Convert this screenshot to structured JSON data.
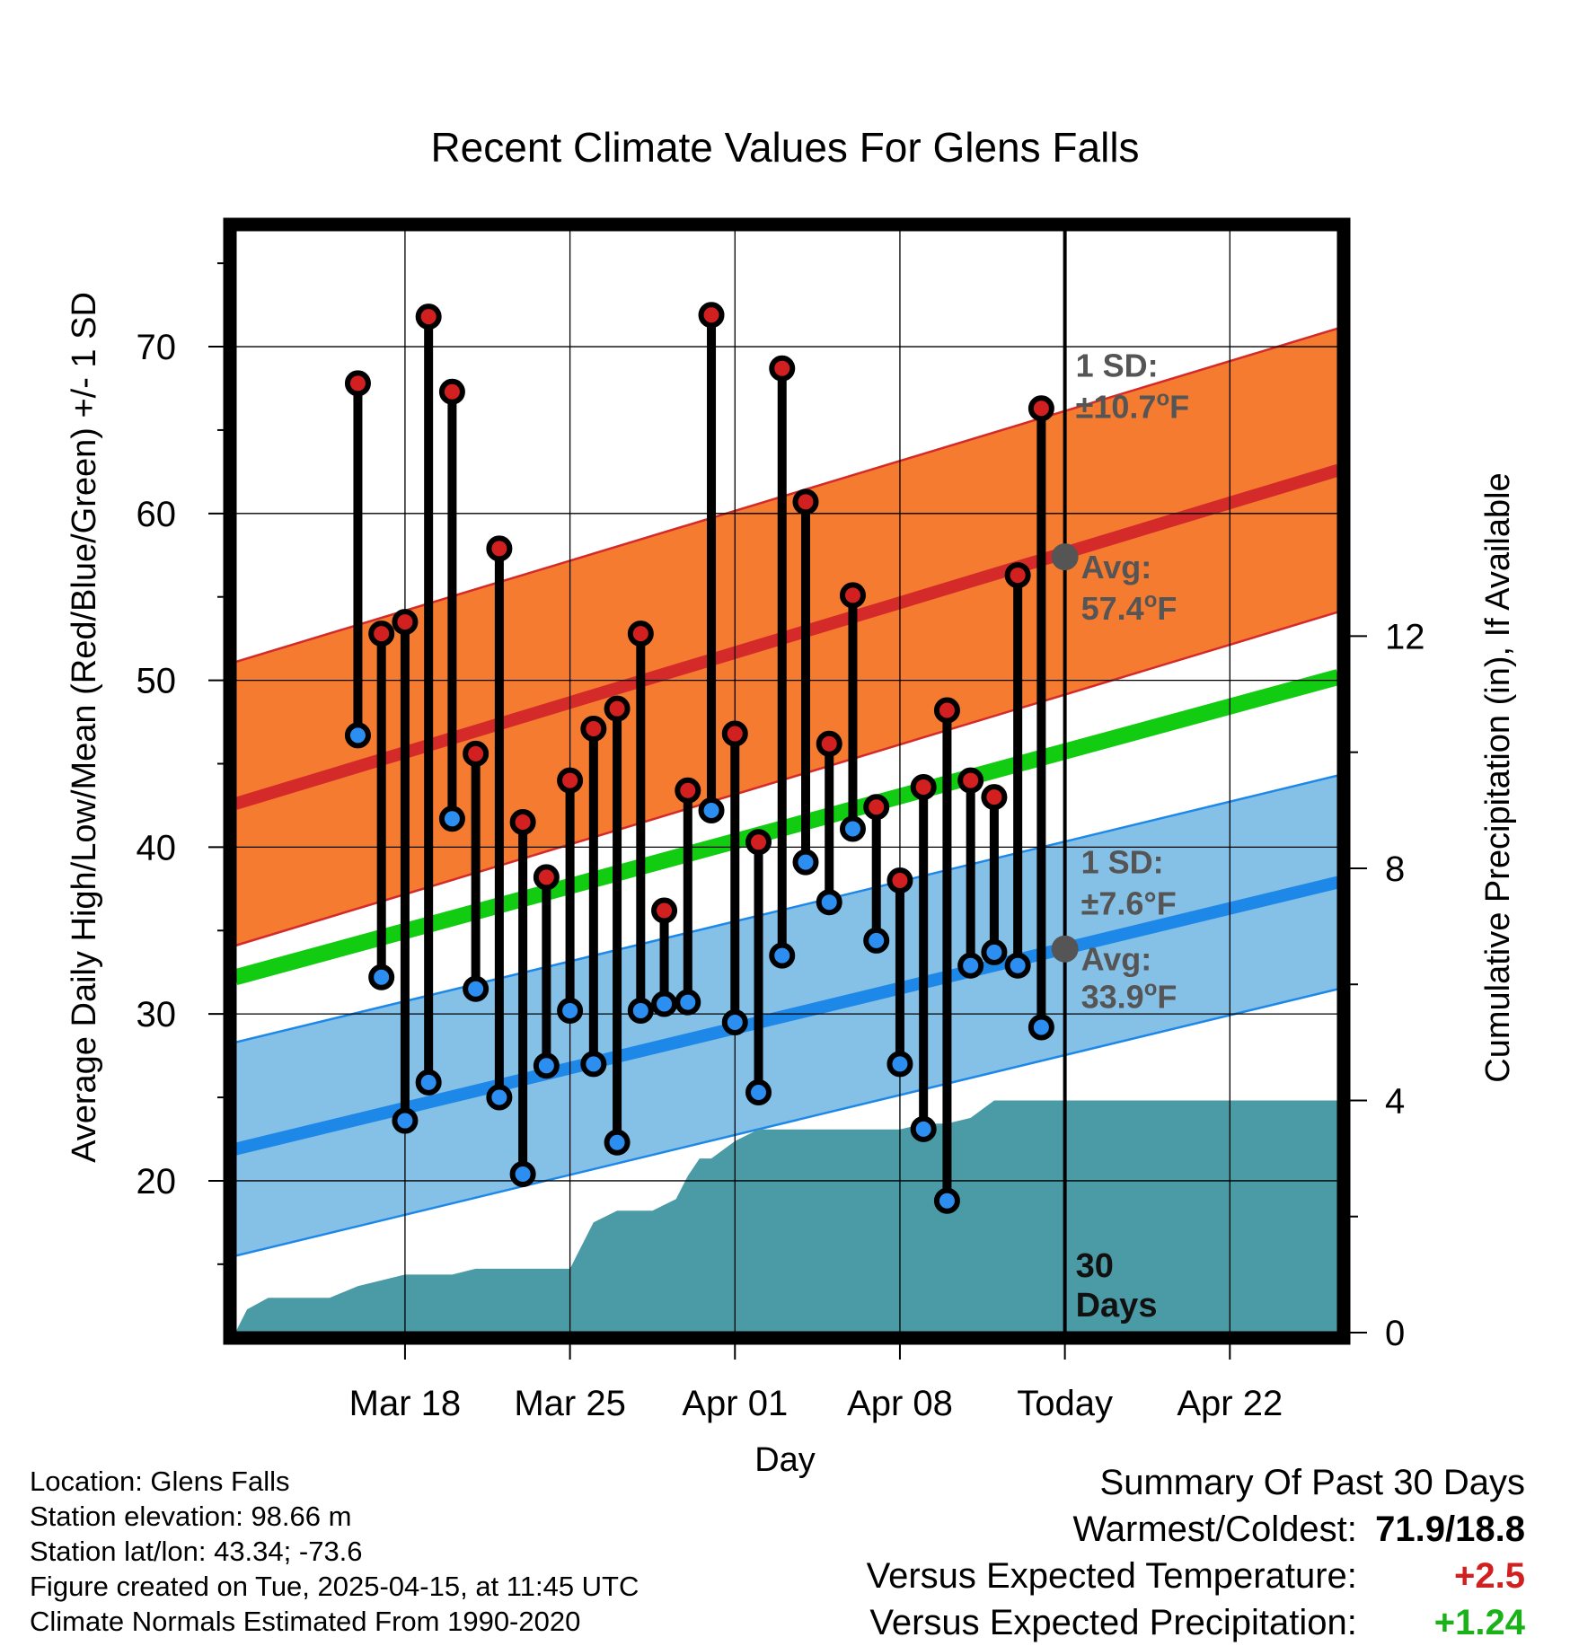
{
  "chart_data": {
    "type": "line",
    "title": "Recent Climate Values For Glens Falls",
    "xlabel": "Day",
    "ylabel_left": "Average Daily High/Low/Mean (Red/Blue/Green) +/- 1 SD",
    "ylabel_right": "Cumulative Precipitation (in), If Available",
    "x_range_days": [
      -35.2,
      11.6
    ],
    "ylim": [
      10.9,
      77.0
    ],
    "y_ticks": [
      20,
      30,
      40,
      50,
      60,
      70
    ],
    "y_tick_labels": [
      "20",
      "30",
      "40",
      "50",
      "60",
      "70"
    ],
    "precip_lim": [
      0,
      19.0
    ],
    "precip_ticks": [
      0,
      4,
      8,
      12
    ],
    "precip_tick_labels": [
      "0",
      "4",
      "8",
      "12"
    ],
    "x_ticks": [
      {
        "day": -28,
        "label": "Mar 18"
      },
      {
        "day": -21,
        "label": "Mar 25"
      },
      {
        "day": -14,
        "label": "Apr 01"
      },
      {
        "day": -7,
        "label": "Apr 08"
      },
      {
        "day": 0,
        "label": "Today"
      },
      {
        "day": 7,
        "label": "Apr 22"
      }
    ],
    "normal_high": {
      "start": 42.6,
      "end": 62.6,
      "sd": 8.5
    },
    "normal_low": {
      "start": 21.9,
      "end": 37.9,
      "sd": 6.4
    },
    "normal_mean": {
      "start": 32.2,
      "end": 50.2
    },
    "today_high_sd_line1": "1 SD:",
    "today_high_sd_line2": "±10.7",
    "today_high_avg_line1": "Avg:",
    "today_high_avg_line2": "57.4",
    "today_high_avg": 57.4,
    "today_low_sd_line1": "1 SD:",
    "today_low_sd_line2": "±7.6°F",
    "today_low_avg_line1": "Avg:",
    "today_low_avg_line2": "33.9",
    "today_low_avg": 33.9,
    "degree_unit": "o",
    "fahrenheit": "F",
    "days_label_1": "30",
    "days_label_2": "Days",
    "highs": [
      67.8,
      52.8,
      53.5,
      71.8,
      67.3,
      45.6,
      57.9,
      41.5,
      38.2,
      44.0,
      47.1,
      48.3,
      52.8,
      36.2,
      43.4,
      71.9,
      46.8,
      40.3,
      68.7,
      60.7,
      46.2,
      55.1,
      42.4,
      38.0,
      43.6,
      48.2,
      44.0,
      43.0,
      56.3,
      66.3
    ],
    "lows": [
      46.7,
      32.2,
      23.6,
      25.9,
      41.7,
      31.5,
      25.0,
      20.4,
      26.9,
      30.2,
      27.0,
      22.3,
      30.2,
      30.6,
      30.7,
      42.2,
      29.5,
      25.3,
      33.5,
      39.1,
      36.7,
      41.1,
      34.4,
      27.0,
      23.1,
      18.8,
      32.9,
      33.7,
      32.9,
      29.2
    ],
    "precip_days": [
      -35.2,
      -34.7,
      -33.8,
      -32.2,
      -31.2,
      -30.0,
      -28.0,
      -27.0,
      -26.0,
      -25.0,
      -24.0,
      -23.0,
      -22.0,
      -21.0,
      -20.0,
      -19.0,
      -18.0,
      -17.5,
      -16.5,
      -16.0,
      -15.5,
      -15.0,
      -14.0,
      -13.0,
      -12.0,
      -11.0,
      -10.0,
      -9.0,
      -8.0,
      -7.0,
      -6.0,
      -5.0,
      -4.0,
      -3.0,
      -2.0,
      -1.0,
      0.0,
      11.6
    ],
    "precip_values": [
      0.0,
      0.4,
      0.6,
      0.6,
      0.6,
      0.8,
      1.0,
      1.0,
      1.0,
      1.1,
      1.1,
      1.1,
      1.1,
      1.1,
      1.9,
      2.1,
      2.1,
      2.1,
      2.3,
      2.7,
      3.0,
      3.0,
      3.3,
      3.5,
      3.5,
      3.5,
      3.5,
      3.5,
      3.5,
      3.5,
      3.6,
      3.6,
      3.7,
      4.0,
      4.0,
      4.0,
      4.0,
      4.0
    ]
  },
  "meta": {
    "location": "Location: Glens Falls",
    "elevation": "Station elevation: 98.66 m",
    "latlon": "Station lat/lon: 43.34; -73.6",
    "created": "Figure created on Tue, 2025-04-15, at 11:45 UTC",
    "normals": "Climate Normals Estimated From 1990-2020"
  },
  "summary": {
    "title": "Summary Of Past 30 Days",
    "warm_cold_label": "Warmest/Coldest:",
    "warm_cold_value": "71.9/18.8",
    "temp_label": "Versus Expected Temperature:",
    "temp_value": "+2.5",
    "precip_label": "Versus Expected Precipitation:",
    "precip_value": "+1.24"
  },
  "colors": {
    "high_band": "#f47b30",
    "high_line": "#d42a2a",
    "low_band": "#85c1e7",
    "low_line": "#1e88e8",
    "mean_line": "#11cc11",
    "precip_fill": "#4a9ba5",
    "high_dot": "#d21f1f",
    "low_dot": "#2b8ef0",
    "label_gray": "#555555",
    "temp_positive": "#d22020",
    "precip_positive": "#19b319"
  }
}
